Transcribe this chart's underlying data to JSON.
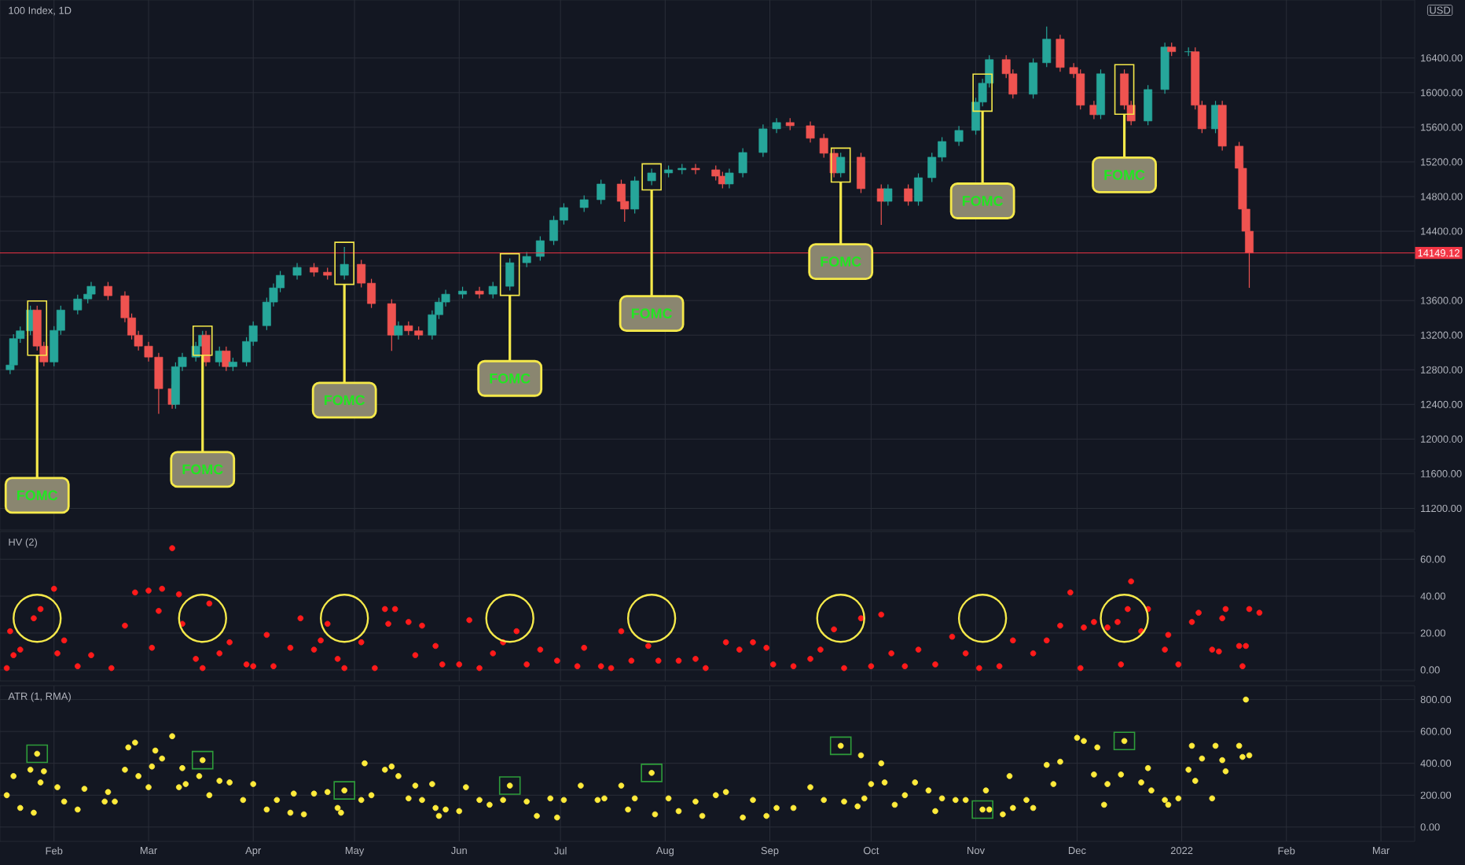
{
  "chart_data": [
    {
      "type": "candlestick",
      "title": "100 Index, 1D",
      "x": [
        "2021-01-19",
        "2021-01-20",
        "2021-01-22",
        "2021-01-25",
        "2021-01-27",
        "2021-01-29",
        "2021-02-01",
        "2021-02-03",
        "2021-02-08",
        "2021-02-11",
        "2021-02-12",
        "2021-02-17",
        "2021-02-22",
        "2021-02-24",
        "2021-02-26",
        "2021-03-01",
        "2021-03-04",
        "2021-03-08",
        "2021-03-09",
        "2021-03-11",
        "2021-03-15",
        "2021-03-17",
        "2021-03-18",
        "2021-03-22",
        "2021-03-24",
        "2021-03-26",
        "2021-03-30",
        "2021-04-01",
        "2021-04-05",
        "2021-04-07",
        "2021-04-09",
        "2021-04-14",
        "2021-04-19",
        "2021-04-23",
        "2021-04-28",
        "2021-05-03",
        "2021-05-06",
        "2021-05-12",
        "2021-05-14",
        "2021-05-17",
        "2021-05-20",
        "2021-05-24",
        "2021-05-26",
        "2021-05-28",
        "2021-06-02",
        "2021-06-07",
        "2021-06-11",
        "2021-06-16",
        "2021-06-21",
        "2021-06-25",
        "2021-06-29",
        "2021-07-02",
        "2021-07-08",
        "2021-07-13",
        "2021-07-19",
        "2021-07-20",
        "2021-07-23",
        "2021-07-28",
        "2021-08-02",
        "2021-08-06",
        "2021-08-10",
        "2021-08-16",
        "2021-08-18",
        "2021-08-20",
        "2021-08-24",
        "2021-08-30",
        "2021-09-03",
        "2021-09-07",
        "2021-09-13",
        "2021-09-17",
        "2021-09-20",
        "2021-09-22",
        "2021-09-28",
        "2021-10-04",
        "2021-10-06",
        "2021-10-12",
        "2021-10-15",
        "2021-10-19",
        "2021-10-22",
        "2021-10-27",
        "2021-11-01",
        "2021-11-03",
        "2021-11-05",
        "2021-11-10",
        "2021-11-12",
        "2021-11-18",
        "2021-11-22",
        "2021-11-26",
        "2021-11-30",
        "2021-12-02",
        "2021-12-06",
        "2021-12-08",
        "2021-12-15",
        "2021-12-17",
        "2021-12-22",
        "2021-12-27",
        "2021-12-29",
        "2022-01-03",
        "2022-01-05",
        "2022-01-07",
        "2022-01-11",
        "2022-01-13",
        "2022-01-18",
        "2022-01-19",
        "2022-01-20",
        "2022-01-21"
      ],
      "ohlc": [
        [
          12800,
          12905,
          12750,
          12855
        ],
        [
          12855,
          13210,
          12805,
          13160
        ],
        [
          13160,
          13300,
          13110,
          13250
        ],
        [
          13250,
          13540,
          13200,
          13490
        ],
        [
          13490,
          13540,
          13023,
          13073
        ],
        [
          13073,
          13123,
          12840,
          12890
        ],
        [
          12890,
          13305,
          12840,
          13255
        ],
        [
          13255,
          13540,
          13205,
          13490
        ],
        [
          13490,
          13668,
          13440,
          13618
        ],
        [
          13618,
          13723,
          13568,
          13673
        ],
        [
          13673,
          13814,
          13623,
          13764
        ],
        [
          13764,
          13814,
          13605,
          13655
        ],
        [
          13655,
          13705,
          13350,
          13400
        ],
        [
          13400,
          13450,
          13150,
          13200
        ],
        [
          13200,
          13250,
          13023,
          13073
        ],
        [
          13073,
          13123,
          12896,
          12946
        ],
        [
          12946,
          12996,
          12291,
          12582
        ],
        [
          12582,
          12632,
          12350,
          12400
        ],
        [
          12400,
          12886,
          12350,
          12836
        ],
        [
          12836,
          12996,
          12786,
          12946
        ],
        [
          12946,
          13123,
          12896,
          13073
        ],
        [
          13073,
          13250,
          13023,
          13200
        ],
        [
          13200,
          13250,
          12840,
          12890
        ],
        [
          12890,
          13068,
          12840,
          13018
        ],
        [
          13018,
          13068,
          12786,
          12836
        ],
        [
          12836,
          12940,
          12786,
          12890
        ],
        [
          12890,
          13177,
          12840,
          13127
        ],
        [
          13127,
          13359,
          13077,
          13309
        ],
        [
          13309,
          13632,
          13259,
          13582
        ],
        [
          13582,
          13796,
          13532,
          13746
        ],
        [
          13746,
          13941,
          13696,
          13891
        ],
        [
          13891,
          14032,
          13841,
          13982
        ],
        [
          13982,
          14032,
          13877,
          13927
        ],
        [
          13927,
          13977,
          13841,
          13891
        ],
        [
          13891,
          14218,
          13841,
          14018
        ],
        [
          14018,
          14068,
          13750,
          13800
        ],
        [
          13800,
          13850,
          13514,
          13564
        ],
        [
          13564,
          13614,
          13018,
          13200
        ],
        [
          13200,
          13359,
          13150,
          13309
        ],
        [
          13309,
          13359,
          13200,
          13250
        ],
        [
          13250,
          13300,
          13150,
          13200
        ],
        [
          13200,
          13486,
          13150,
          13436
        ],
        [
          13436,
          13632,
          13386,
          13582
        ],
        [
          13582,
          13723,
          13532,
          13673
        ],
        [
          13673,
          13759,
          13623,
          13709
        ],
        [
          13709,
          13759,
          13623,
          13673
        ],
        [
          13673,
          13814,
          13623,
          13764
        ],
        [
          13764,
          14086,
          13714,
          14036
        ],
        [
          14036,
          14159,
          13986,
          14109
        ],
        [
          14109,
          14341,
          14059,
          14291
        ],
        [
          14291,
          14577,
          14241,
          14527
        ],
        [
          14527,
          14723,
          14477,
          14673
        ],
        [
          14673,
          14814,
          14623,
          14764
        ],
        [
          14764,
          14995,
          14714,
          14945
        ],
        [
          14945,
          14995,
          14695,
          14745
        ],
        [
          14745,
          14795,
          14509,
          14655
        ],
        [
          14655,
          15032,
          14605,
          14982
        ],
        [
          14982,
          15123,
          14932,
          15073
        ],
        [
          15073,
          15159,
          15023,
          15109
        ],
        [
          15109,
          15177,
          15059,
          15127
        ],
        [
          15127,
          15177,
          15059,
          15109
        ],
        [
          15109,
          15159,
          14986,
          15036
        ],
        [
          15036,
          15086,
          14895,
          14945
        ],
        [
          14945,
          15123,
          14895,
          15073
        ],
        [
          15073,
          15359,
          15023,
          15309
        ],
        [
          15309,
          15632,
          15259,
          15582
        ],
        [
          15582,
          15705,
          15532,
          15655
        ],
        [
          15655,
          15705,
          15568,
          15618
        ],
        [
          15618,
          15668,
          15423,
          15473
        ],
        [
          15473,
          15523,
          15250,
          15300
        ],
        [
          15300,
          15350,
          15023,
          15073
        ],
        [
          15073,
          15305,
          15023,
          15255
        ],
        [
          15255,
          15305,
          14841,
          14891
        ],
        [
          14891,
          14941,
          14473,
          14745
        ],
        [
          14745,
          14941,
          14695,
          14891
        ],
        [
          14891,
          14941,
          14695,
          14745
        ],
        [
          14745,
          15068,
          14695,
          15018
        ],
        [
          15018,
          15305,
          14968,
          15255
        ],
        [
          15255,
          15486,
          15205,
          15436
        ],
        [
          15436,
          15614,
          15386,
          15564
        ],
        [
          15564,
          15941,
          15514,
          15891
        ],
        [
          15891,
          16159,
          15841,
          16109
        ],
        [
          16109,
          16432,
          16059,
          16382
        ],
        [
          16382,
          16432,
          16168,
          16218
        ],
        [
          16218,
          16268,
          15932,
          15982
        ],
        [
          15982,
          16395,
          15932,
          16345
        ],
        [
          16345,
          16764,
          16295,
          16618
        ],
        [
          16618,
          16668,
          16241,
          16291
        ],
        [
          16291,
          16341,
          16168,
          16218
        ],
        [
          16218,
          16268,
          15805,
          15855
        ],
        [
          15855,
          15905,
          15695,
          15745
        ],
        [
          15745,
          16268,
          15695,
          16218
        ],
        [
          16218,
          16268,
          15805,
          15855
        ],
        [
          15855,
          15905,
          15623,
          15673
        ],
        [
          15673,
          16086,
          15623,
          16036
        ],
        [
          16036,
          16577,
          15986,
          16527
        ],
        [
          16527,
          16577,
          16423,
          16473
        ],
        [
          16473,
          16523,
          16423,
          16473
        ],
        [
          16473,
          16523,
          15805,
          15855
        ],
        [
          15855,
          15905,
          15532,
          15582
        ],
        [
          15582,
          15905,
          15532,
          15855
        ],
        [
          15855,
          15905,
          15332,
          15382
        ],
        [
          15382,
          15432,
          15077,
          15127
        ],
        [
          15127,
          15177,
          14605,
          14655
        ],
        [
          14655,
          14705,
          14350,
          14400
        ],
        [
          14400,
          14450,
          13746,
          14149.12
        ]
      ],
      "xlim": [
        "2021-01-16",
        "2022-03-11"
      ],
      "xticks": [
        {
          "value": "2021-02-01",
          "label": null
        },
        {
          "value": "2021-03-01",
          "label": null
        },
        {
          "value": "2021-04-01",
          "label": null
        },
        {
          "value": "2021-05-01",
          "label": null
        },
        {
          "value": "2021-06-01",
          "label": null
        },
        {
          "value": "2021-07-01",
          "label": null
        },
        {
          "value": "2021-08-01",
          "label": null
        },
        {
          "value": "2021-09-01",
          "label": null
        },
        {
          "value": "2021-10-01",
          "label": null
        },
        {
          "value": "2021-11-01",
          "label": null
        },
        {
          "value": "2021-12-01",
          "label": null
        },
        {
          "value": "2022-01-01",
          "label": null
        },
        {
          "value": "2022-02-01",
          "label": null
        },
        {
          "value": "2022-03-01",
          "label": null
        }
      ],
      "ylim": [
        10950,
        17070
      ],
      "yticks": [
        {
          "value": 11200,
          "label": "11200.00"
        },
        {
          "value": 11600,
          "label": "11600.00"
        },
        {
          "value": 12000,
          "label": "12000.00"
        },
        {
          "value": 12400,
          "label": "12400.00"
        },
        {
          "value": 12800,
          "label": "12800.00"
        },
        {
          "value": 13200,
          "label": "13200.00"
        },
        {
          "value": 13600,
          "label": "13600.00"
        },
        {
          "value": 14000,
          "label": null
        },
        {
          "value": 14400,
          "label": "14400.00"
        },
        {
          "value": 14800,
          "label": "14800.00"
        },
        {
          "value": 15200,
          "label": "15200.00"
        },
        {
          "value": 15600,
          "label": "15600.00"
        },
        {
          "value": 16000,
          "label": "16000.00"
        },
        {
          "value": 16400,
          "label": "16400.00"
        }
      ],
      "grid": true,
      "tick_labels": "y",
      "ref_lines": [
        {
          "axis": "y",
          "value": 14149.12,
          "label": "14149.12",
          "color": "#f23645"
        }
      ],
      "annotations": [
        "USD",
        {
          "text": "FOMC",
          "x": "2021-01-27",
          "y": 11350
        },
        {
          "text": "FOMC",
          "x": "2021-03-17",
          "y": 11650
        },
        {
          "text": "FOMC",
          "x": "2021-04-28",
          "y": 12450
        },
        {
          "text": "FOMC",
          "x": "2021-06-16",
          "y": 12700
        },
        {
          "text": "FOMC",
          "x": "2021-07-28",
          "y": 13450
        },
        {
          "text": "FOMC",
          "x": "2021-09-22",
          "y": 14050
        },
        {
          "text": "FOMC",
          "x": "2021-11-03",
          "y": 14750
        },
        {
          "text": "FOMC",
          "x": "2021-12-15",
          "y": 15050
        }
      ]
    },
    {
      "type": "scatter",
      "title": "HV (2)",
      "marker": "circle",
      "grid": true,
      "tick_labels": "y",
      "xlim": [
        "2021-01-16",
        "2022-03-11"
      ],
      "xticks": [
        {
          "value": "2021-02-01",
          "label": null
        },
        {
          "value": "2021-03-01",
          "label": null
        },
        {
          "value": "2021-04-01",
          "label": null
        },
        {
          "value": "2021-05-01",
          "label": null
        },
        {
          "value": "2021-06-01",
          "label": null
        },
        {
          "value": "2021-07-01",
          "label": null
        },
        {
          "value": "2021-08-01",
          "label": null
        },
        {
          "value": "2021-09-01",
          "label": null
        },
        {
          "value": "2021-10-01",
          "label": null
        },
        {
          "value": "2021-11-01",
          "label": null
        },
        {
          "value": "2021-12-01",
          "label": null
        },
        {
          "value": "2022-01-01",
          "label": null
        },
        {
          "value": "2022-02-01",
          "label": null
        },
        {
          "value": "2022-03-01",
          "label": null
        }
      ],
      "ylim": [
        -6,
        75
      ],
      "yticks": [
        {
          "value": 0,
          "label": "0.00"
        },
        {
          "value": 20,
          "label": "20.00"
        },
        {
          "value": 40,
          "label": "40.00"
        },
        {
          "value": 60,
          "label": "60.00"
        }
      ],
      "series": [
        {
          "color": "#ff1a1a",
          "x": [
            "2021-01-18",
            "2021-01-19",
            "2021-01-20",
            "2021-01-22",
            "2021-01-26",
            "2021-01-28",
            "2021-02-01",
            "2021-02-02",
            "2021-02-04",
            "2021-02-08",
            "2021-02-12",
            "2021-02-18",
            "2021-02-22",
            "2021-02-25",
            "2021-03-01",
            "2021-03-02",
            "2021-03-04",
            "2021-03-05",
            "2021-03-08",
            "2021-03-10",
            "2021-03-11",
            "2021-03-15",
            "2021-03-17",
            "2021-03-19",
            "2021-03-22",
            "2021-03-25",
            "2021-03-30",
            "2021-04-01",
            "2021-04-05",
            "2021-04-07",
            "2021-04-12",
            "2021-04-15",
            "2021-04-19",
            "2021-04-21",
            "2021-04-23",
            "2021-04-26",
            "2021-04-28",
            "2021-05-03",
            "2021-05-07",
            "2021-05-10",
            "2021-05-11",
            "2021-05-13",
            "2021-05-17",
            "2021-05-19",
            "2021-05-21",
            "2021-05-25",
            "2021-05-27",
            "2021-06-01",
            "2021-06-04",
            "2021-06-07",
            "2021-06-11",
            "2021-06-14",
            "2021-06-18",
            "2021-06-21",
            "2021-06-25",
            "2021-06-30",
            "2021-07-06",
            "2021-07-08",
            "2021-07-13",
            "2021-07-16",
            "2021-07-19",
            "2021-07-22",
            "2021-07-27",
            "2021-07-30",
            "2021-08-05",
            "2021-08-10",
            "2021-08-13",
            "2021-08-19",
            "2021-08-23",
            "2021-08-27",
            "2021-08-31",
            "2021-09-02",
            "2021-09-08",
            "2021-09-13",
            "2021-09-16",
            "2021-09-20",
            "2021-09-23",
            "2021-09-28",
            "2021-10-01",
            "2021-10-04",
            "2021-10-07",
            "2021-10-11",
            "2021-10-15",
            "2021-10-20",
            "2021-10-25",
            "2021-10-29",
            "2021-11-02",
            "2021-11-08",
            "2021-11-12",
            "2021-11-18",
            "2021-11-22",
            "2021-11-26",
            "2021-11-29",
            "2021-12-02",
            "2021-12-03",
            "2021-12-06",
            "2021-12-10",
            "2021-12-13",
            "2021-12-14",
            "2021-12-16",
            "2021-12-17",
            "2021-12-20",
            "2021-12-22",
            "2021-12-27",
            "2021-12-28",
            "2021-12-31",
            "2022-01-04",
            "2022-01-06",
            "2022-01-10",
            "2022-01-12",
            "2022-01-13",
            "2022-01-14",
            "2022-01-18",
            "2022-01-19",
            "2022-01-20",
            "2022-01-21",
            "2022-01-24"
          ],
          "values": [
            1,
            21,
            8,
            11,
            28,
            33,
            44,
            9,
            16,
            2,
            8,
            1,
            24,
            42,
            43,
            12,
            32,
            44,
            66,
            41,
            25,
            6,
            1,
            36,
            9,
            15,
            3,
            2,
            19,
            2,
            12,
            28,
            11,
            16,
            25,
            6,
            1,
            15,
            1,
            33,
            25,
            33,
            26,
            8,
            24,
            13,
            3,
            3,
            27,
            1,
            9,
            15,
            21,
            3,
            11,
            5,
            2,
            12,
            2,
            1,
            21,
            5,
            13,
            5,
            5,
            6,
            1,
            15,
            11,
            15,
            12,
            3,
            2,
            6,
            11,
            22,
            1,
            28,
            2,
            30,
            9,
            2,
            11,
            3,
            18,
            9,
            1,
            2,
            16,
            9,
            16,
            24,
            42,
            1,
            23,
            26,
            23,
            26,
            3,
            33,
            48,
            21,
            33,
            11,
            19,
            3,
            26,
            31,
            11,
            10,
            28,
            33,
            13,
            2,
            13,
            33,
            31
          ]
        }
      ]
    },
    {
      "type": "scatter",
      "title": "ATR (1, RMA)",
      "marker": "circle",
      "grid": true,
      "xlim": [
        "2021-01-16",
        "2022-03-11"
      ],
      "xticks": [
        {
          "value": "2021-02-01",
          "label": "Feb"
        },
        {
          "value": "2021-03-01",
          "label": "Mar"
        },
        {
          "value": "2021-04-01",
          "label": "Apr"
        },
        {
          "value": "2021-05-01",
          "label": "May"
        },
        {
          "value": "2021-06-01",
          "label": "Jun"
        },
        {
          "value": "2021-07-01",
          "label": "Jul"
        },
        {
          "value": "2021-08-01",
          "label": "Aug"
        },
        {
          "value": "2021-09-01",
          "label": "Sep"
        },
        {
          "value": "2021-10-01",
          "label": "Oct"
        },
        {
          "value": "2021-11-01",
          "label": "Nov"
        },
        {
          "value": "2021-12-01",
          "label": "Dec"
        },
        {
          "value": "2022-01-01",
          "label": "2022"
        },
        {
          "value": "2022-02-01",
          "label": "Feb"
        },
        {
          "value": "2022-03-01",
          "label": "Mar"
        }
      ],
      "ylim": [
        -90,
        887
      ],
      "yticks": [
        {
          "value": 0,
          "label": "0.00"
        },
        {
          "value": 200,
          "label": "200.00"
        },
        {
          "value": 400,
          "label": "400.00"
        },
        {
          "value": 600,
          "label": "600.00"
        },
        {
          "value": 800,
          "label": "800.00"
        }
      ],
      "series": [
        {
          "color": "#ffeb3b",
          "x": [
            "2021-01-18",
            "2021-01-20",
            "2021-01-22",
            "2021-01-25",
            "2021-01-26",
            "2021-01-27",
            "2021-01-28",
            "2021-01-29",
            "2021-02-02",
            "2021-02-04",
            "2021-02-08",
            "2021-02-10",
            "2021-02-16",
            "2021-02-17",
            "2021-02-19",
            "2021-02-22",
            "2021-02-23",
            "2021-02-25",
            "2021-02-26",
            "2021-03-01",
            "2021-03-02",
            "2021-03-03",
            "2021-03-05",
            "2021-03-08",
            "2021-03-10",
            "2021-03-11",
            "2021-03-12",
            "2021-03-16",
            "2021-03-17",
            "2021-03-19",
            "2021-03-22",
            "2021-03-25",
            "2021-03-29",
            "2021-04-01",
            "2021-04-05",
            "2021-04-08",
            "2021-04-12",
            "2021-04-13",
            "2021-04-16",
            "2021-04-19",
            "2021-04-23",
            "2021-04-26",
            "2021-04-27",
            "2021-04-28",
            "2021-05-03",
            "2021-05-04",
            "2021-05-06",
            "2021-05-10",
            "2021-05-12",
            "2021-05-14",
            "2021-05-17",
            "2021-05-19",
            "2021-05-21",
            "2021-05-24",
            "2021-05-25",
            "2021-05-26",
            "2021-05-28",
            "2021-06-01",
            "2021-06-03",
            "2021-06-07",
            "2021-06-10",
            "2021-06-14",
            "2021-06-16",
            "2021-06-21",
            "2021-06-24",
            "2021-06-28",
            "2021-06-30",
            "2021-07-02",
            "2021-07-07",
            "2021-07-12",
            "2021-07-14",
            "2021-07-19",
            "2021-07-21",
            "2021-07-23",
            "2021-07-28",
            "2021-07-29",
            "2021-08-02",
            "2021-08-05",
            "2021-08-10",
            "2021-08-12",
            "2021-08-16",
            "2021-08-19",
            "2021-08-24",
            "2021-08-27",
            "2021-08-31",
            "2021-09-03",
            "2021-09-08",
            "2021-09-13",
            "2021-09-17",
            "2021-09-22",
            "2021-09-23",
            "2021-09-27",
            "2021-09-28",
            "2021-09-29",
            "2021-10-01",
            "2021-10-04",
            "2021-10-05",
            "2021-10-08",
            "2021-10-11",
            "2021-10-14",
            "2021-10-18",
            "2021-10-20",
            "2021-10-22",
            "2021-10-26",
            "2021-10-29",
            "2021-11-03",
            "2021-11-04",
            "2021-11-05",
            "2021-11-09",
            "2021-11-11",
            "2021-11-12",
            "2021-11-16",
            "2021-11-18",
            "2021-11-22",
            "2021-11-24",
            "2021-11-26",
            "2021-12-01",
            "2021-12-03",
            "2021-12-06",
            "2021-12-07",
            "2021-12-09",
            "2021-12-10",
            "2021-12-14",
            "2021-12-15",
            "2021-12-20",
            "2021-12-22",
            "2021-12-23",
            "2021-12-27",
            "2021-12-28",
            "2021-12-31",
            "2022-01-03",
            "2022-01-04",
            "2022-01-05",
            "2022-01-07",
            "2022-01-10",
            "2022-01-11",
            "2022-01-13",
            "2022-01-14",
            "2022-01-18",
            "2022-01-19",
            "2022-01-20",
            "2022-01-21"
          ],
          "values": [
            200,
            320,
            120,
            360,
            90,
            460,
            280,
            350,
            250,
            160,
            110,
            240,
            160,
            220,
            160,
            360,
            500,
            530,
            320,
            250,
            380,
            480,
            430,
            570,
            250,
            370,
            270,
            320,
            420,
            200,
            290,
            280,
            170,
            270,
            110,
            170,
            90,
            210,
            80,
            210,
            220,
            120,
            90,
            230,
            170,
            400,
            200,
            360,
            380,
            320,
            180,
            260,
            170,
            270,
            120,
            70,
            110,
            100,
            250,
            170,
            140,
            170,
            260,
            160,
            70,
            180,
            60,
            170,
            260,
            170,
            180,
            260,
            110,
            180,
            340,
            80,
            180,
            100,
            160,
            70,
            200,
            220,
            60,
            170,
            70,
            120,
            120,
            250,
            170,
            510,
            160,
            130,
            450,
            180,
            270,
            400,
            280,
            140,
            200,
            280,
            230,
            100,
            180,
            170,
            170,
            110,
            230,
            110,
            80,
            320,
            120,
            170,
            120,
            390,
            270,
            410,
            560,
            540,
            330,
            500,
            140,
            270,
            330,
            540,
            280,
            370,
            230,
            170,
            140,
            180,
            360,
            510,
            290,
            430,
            180,
            510,
            420,
            350,
            510,
            440,
            800,
            450
          ]
        }
      ]
    }
  ]
}
